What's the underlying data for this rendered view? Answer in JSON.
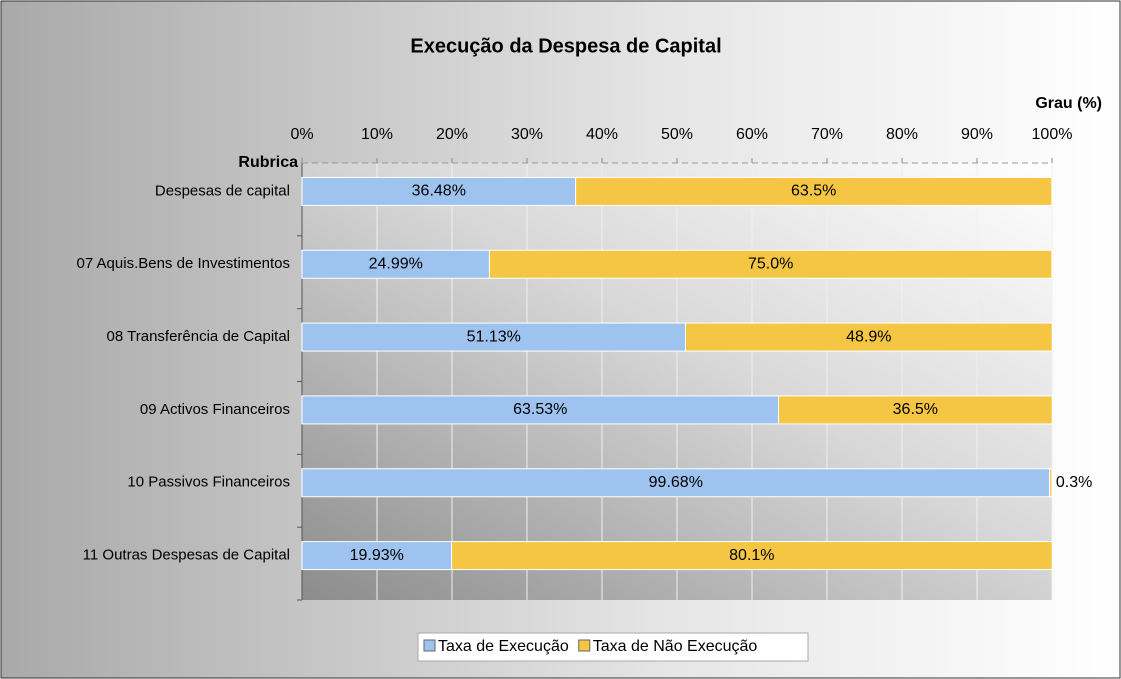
{
  "chart_data": {
    "type": "stacked-bar-horizontal",
    "title": "Execução da Despesa de Capital",
    "x_label": "Grau (%)",
    "y_label": "Rubrica",
    "categories": [
      "Despesas de capital",
      "07 Aquis.Bens de Investimentos",
      "08 Transferência de Capital",
      "09 Activos Financeiros",
      "10 Passivos Financeiros",
      "11 Outras Despesas de Capital"
    ],
    "series": [
      {
        "name": "Taxa de Execução",
        "color": "#9dc3ee",
        "values": [
          36.48,
          24.99,
          51.13,
          63.53,
          99.68,
          19.93
        ],
        "value_labels": [
          "36.48%",
          "24.99%",
          "51.13%",
          "63.53%",
          "99.68%",
          "19.93%"
        ]
      },
      {
        "name": "Taxa de Não Execução",
        "color": "#f5c544",
        "values": [
          63.5,
          75.0,
          48.9,
          36.5,
          0.3,
          80.1
        ],
        "value_labels": [
          "63.5%",
          "75.0%",
          "48.9%",
          "36.5%",
          "0.3%",
          "80.1%"
        ]
      }
    ],
    "xlim": [
      0,
      100
    ],
    "xticks": [
      {
        "value": 0,
        "label": "0%"
      },
      {
        "value": 10,
        "label": "10%"
      },
      {
        "value": 20,
        "label": "20%"
      },
      {
        "value": 30,
        "label": "30%"
      },
      {
        "value": 40,
        "label": "40%"
      },
      {
        "value": 50,
        "label": "50%"
      },
      {
        "value": 60,
        "label": "60%"
      },
      {
        "value": 70,
        "label": "70%"
      },
      {
        "value": 80,
        "label": "80%"
      },
      {
        "value": 90,
        "label": "90%"
      },
      {
        "value": 100,
        "label": "100%"
      }
    ],
    "grid": true,
    "legend": "bottom"
  }
}
